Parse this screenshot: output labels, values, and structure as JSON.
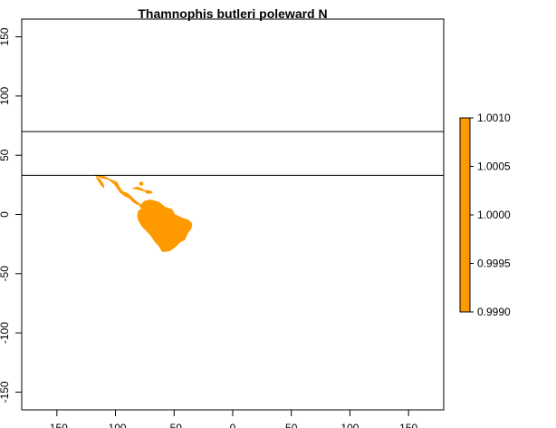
{
  "chart_data": {
    "type": "heatmap",
    "title": "Thamnophis butleri poleward N",
    "xlabel": "",
    "ylabel": "",
    "xlim": [
      -180,
      180
    ],
    "ylim": [
      -165,
      165
    ],
    "x_ticks": [
      {
        "value": -150,
        "label": "-150"
      },
      {
        "value": -100,
        "label": "-100"
      },
      {
        "value": -50,
        "label": "-50"
      },
      {
        "value": 0,
        "label": "0"
      },
      {
        "value": 50,
        "label": "50"
      },
      {
        "value": 100,
        "label": "100"
      },
      {
        "value": 150,
        "label": "150"
      }
    ],
    "y_ticks": [
      {
        "value": 150,
        "label": "150"
      },
      {
        "value": 100,
        "label": "100"
      },
      {
        "value": 50,
        "label": "50"
      },
      {
        "value": 0,
        "label": "0"
      },
      {
        "value": -50,
        "label": "-50"
      },
      {
        "value": -100,
        "label": "-100"
      },
      {
        "value": -150,
        "label": "-150"
      }
    ],
    "horizontal_lines": [
      70,
      33
    ],
    "fill_color": "#ff9900",
    "line_color": "#000000",
    "legend": {
      "placement": "right",
      "color": "#ff9900",
      "range": [
        0.999,
        1.001
      ],
      "ticks": [
        {
          "value": 1.001,
          "label": "1.0010"
        },
        {
          "value": 1.0005,
          "label": "1.0005"
        },
        {
          "value": 1.0,
          "label": "1.0000"
        },
        {
          "value": 0.9995,
          "label": "0.9995"
        },
        {
          "value": 0.999,
          "label": "0.9990"
        }
      ]
    },
    "raster_regions": [
      {
        "name": "mexico-central-america",
        "value": 1.0,
        "coords": [
          [
            -117,
            33
          ],
          [
            -112,
            31
          ],
          [
            -106,
            30
          ],
          [
            -101,
            26
          ],
          [
            -98,
            22
          ],
          [
            -96,
            19
          ],
          [
            -92,
            16
          ],
          [
            -88,
            14
          ],
          [
            -85,
            11
          ],
          [
            -82,
            9
          ],
          [
            -79,
            8
          ],
          [
            -78,
            7
          ],
          [
            -80,
            9
          ],
          [
            -84,
            12
          ],
          [
            -88,
            16
          ],
          [
            -91,
            18
          ],
          [
            -94,
            19
          ],
          [
            -97,
            23
          ],
          [
            -99,
            27
          ],
          [
            -104,
            29
          ],
          [
            -110,
            32
          ]
        ]
      },
      {
        "name": "south-america",
        "value": 1.0,
        "coords": [
          [
            -79,
            7
          ],
          [
            -75,
            11
          ],
          [
            -70,
            12
          ],
          [
            -63,
            10
          ],
          [
            -58,
            6
          ],
          [
            -52,
            4
          ],
          [
            -50,
            0
          ],
          [
            -44,
            -3
          ],
          [
            -38,
            -5
          ],
          [
            -35,
            -8
          ],
          [
            -36,
            -12
          ],
          [
            -39,
            -16
          ],
          [
            -41,
            -21
          ],
          [
            -45,
            -23
          ],
          [
            -48,
            -26
          ],
          [
            -53,
            -30
          ],
          [
            -57,
            -31
          ],
          [
            -60,
            -31
          ],
          [
            -63,
            -26
          ],
          [
            -66,
            -23
          ],
          [
            -68,
            -20
          ],
          [
            -70,
            -17
          ],
          [
            -73,
            -14
          ],
          [
            -77,
            -10
          ],
          [
            -80,
            -5
          ],
          [
            -81,
            -1
          ],
          [
            -80,
            3
          ],
          [
            -77,
            5
          ]
        ]
      },
      {
        "name": "baja-california",
        "value": 1.0,
        "coords": [
          [
            -116,
            31
          ],
          [
            -113,
            29
          ],
          [
            -111,
            26
          ],
          [
            -110,
            23
          ],
          [
            -112,
            25
          ],
          [
            -114,
            28
          ]
        ]
      },
      {
        "name": "cuba",
        "value": 1.0,
        "coords": [
          [
            -85,
            22
          ],
          [
            -81,
            23
          ],
          [
            -77,
            21
          ],
          [
            -75,
            20
          ],
          [
            -79,
            21
          ],
          [
            -83,
            22
          ]
        ]
      },
      {
        "name": "bahamas",
        "value": 1.0,
        "coords": [
          [
            -79,
            27
          ],
          [
            -77,
            27
          ],
          [
            -77,
            25
          ],
          [
            -79,
            25
          ]
        ]
      },
      {
        "name": "hispaniola",
        "value": 1.0,
        "coords": [
          [
            -74,
            20
          ],
          [
            -70,
            19.5
          ],
          [
            -69,
            18.5
          ],
          [
            -72,
            18
          ],
          [
            -74,
            18.5
          ]
        ]
      }
    ]
  }
}
